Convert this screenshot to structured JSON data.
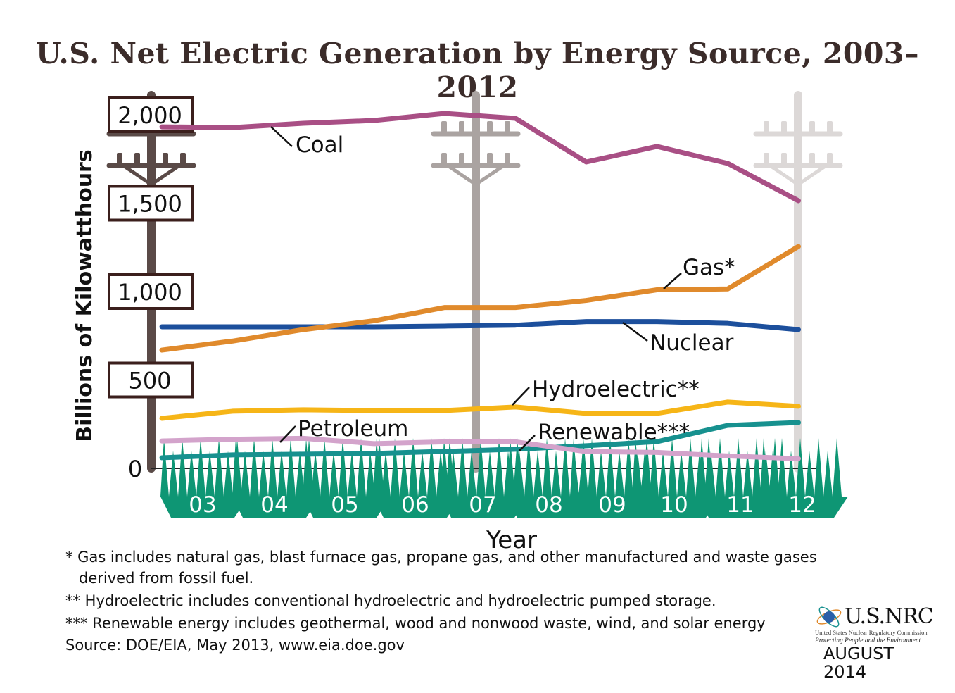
{
  "chart_data": {
    "type": "line",
    "title": "U.S. Net Electric Generation by Energy Source, 2003–2012",
    "xlabel": "Year",
    "ylabel": "Billions of Kilowatthours",
    "ylim": [
      0,
      2000
    ],
    "yticks": [
      "0",
      "500",
      "1,000",
      "1,500",
      "2,000"
    ],
    "ytick_values": [
      0,
      500,
      1000,
      1500,
      2000
    ],
    "categories": [
      "03",
      "04",
      "05",
      "06",
      "07",
      "08",
      "09",
      "10",
      "11",
      "12"
    ],
    "series": [
      {
        "name": "Coal",
        "color": "#a94f85",
        "values": [
          1932,
          1928,
          1952,
          1968,
          2008,
          1980,
          1733,
          1821,
          1725,
          1514
        ]
      },
      {
        "name": "Gas*",
        "color": "#e08a2c",
        "values": [
          669,
          720,
          785,
          835,
          910,
          910,
          950,
          1010,
          1015,
          1255
        ]
      },
      {
        "name": "Nuclear",
        "color": "#1c4f9c",
        "values": [
          801,
          801,
          801,
          801,
          805,
          810,
          830,
          830,
          820,
          785
        ]
      },
      {
        "name": "Hydroelectric**",
        "color": "#f6b517",
        "values": [
          283,
          323,
          331,
          327,
          327,
          347,
          311,
          311,
          375,
          351
        ]
      },
      {
        "name": "Petroleum",
        "color": "#d3a3cb",
        "values": [
          155,
          165,
          170,
          140,
          150,
          150,
          95,
          90,
          70,
          55
        ]
      },
      {
        "name": "Renewable***",
        "color": "#17918f",
        "values": [
          60,
          76,
          80,
          84,
          96,
          108,
          128,
          151,
          243,
          259
        ]
      }
    ]
  },
  "footnotes": [
    "* Gas includes natural gas, blast furnace gas, propane gas, and other manufactured and waste gases",
    "derived from fossil fuel.",
    "** Hydroelectric includes conventional hydroelectric and hydroelectric pumped storage.",
    "*** Renewable energy includes geothermal, wood and nonwood waste, wind, and solar energy",
    "Source: DOE/EIA, May 2013, www.eia.doe.gov"
  ],
  "logo": {
    "name": "U.S.NRC",
    "agency": "United States Nuclear Regulatory Commission",
    "motto": "Protecting People and the Environment"
  },
  "date": "AUGUST 2014"
}
